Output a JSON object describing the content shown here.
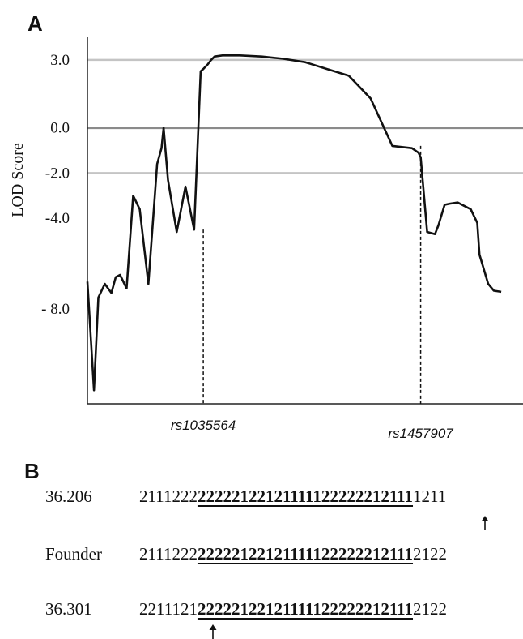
{
  "panels": {
    "a_letter": "A",
    "b_letter": "B"
  },
  "chart_data": {
    "type": "line",
    "ylabel": "LOD Score",
    "ylim": [
      -12.2,
      4.0
    ],
    "yticks": [
      {
        "value": 3.0,
        "label": "3.0",
        "line_color": "#c4c4c4"
      },
      {
        "value": 0.0,
        "label": "0.0",
        "line_color": "#8a8a8a"
      },
      {
        "value": -2.0,
        "label": "-2.0",
        "line_color": "#c4c4c4"
      },
      {
        "value": -4.0,
        "label": "-4.0",
        "line_color": ""
      },
      {
        "value": -8.0,
        "label": "- 8.0",
        "line_color": ""
      }
    ],
    "x_range": [
      0,
      100
    ],
    "series": [
      {
        "x": [
          0,
          1.5,
          2.5,
          4,
          5.5,
          6.5,
          7.5,
          9,
          10.5,
          12,
          14,
          16,
          17,
          17.5,
          18.5,
          20.5,
          22.5,
          24.5,
          26,
          26.6,
          27.6,
          28.4,
          29.2,
          31,
          35,
          40,
          45,
          50,
          55,
          60,
          65,
          70,
          74.5,
          76,
          76.5,
          78,
          79.8,
          80.6,
          82,
          83.2,
          85,
          88,
          89.5,
          90,
          92,
          93.3,
          95
        ],
        "y": [
          -6.8,
          -11.6,
          -7.5,
          -6.9,
          -7.3,
          -6.6,
          -6.5,
          -7.1,
          -3.0,
          -3.6,
          -6.9,
          -1.6,
          -0.9,
          0.0,
          -2.3,
          -4.6,
          -2.6,
          -4.5,
          2.5,
          2.6,
          2.8,
          3.0,
          3.15,
          3.2,
          3.2,
          3.15,
          3.05,
          2.9,
          2.6,
          2.3,
          1.3,
          -0.8,
          -0.9,
          -1.1,
          -1.3,
          -4.6,
          -4.7,
          -4.3,
          -3.4,
          -3.35,
          -3.3,
          -3.6,
          -4.2,
          -5.6,
          -6.9,
          -7.2,
          -7.25
        ],
        "x_scaled_note": ""
      }
    ],
    "markers": [
      {
        "label": "rs1035564",
        "x": 26.6,
        "y_top": -4.5
      },
      {
        "label": "rs1457907",
        "x": 76.5,
        "y_top": -0.8
      }
    ]
  },
  "haplotypes": [
    {
      "name": "36.206",
      "prefix": "2111222",
      "core": "22222122121111122222212111",
      "suffix": "1211",
      "arrow": "right"
    },
    {
      "name": "Founder",
      "prefix": "2111222",
      "core": "22222122121111122222212111",
      "suffix": "2122",
      "arrow": ""
    },
    {
      "name": "36.301",
      "prefix": "2211121",
      "core": "22222122121111122222212111",
      "suffix": "2122",
      "arrow": "left"
    }
  ]
}
